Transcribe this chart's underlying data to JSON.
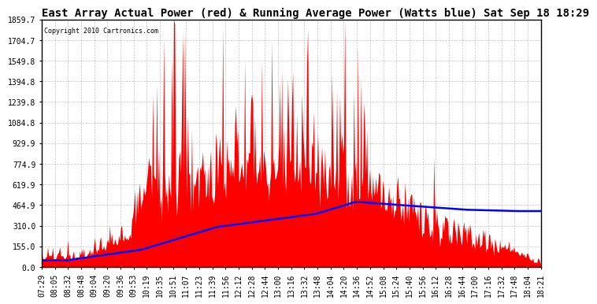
{
  "title": "East Array Actual Power (red) & Running Average Power (Watts blue) Sat Sep 18 18:29",
  "copyright": "Copyright 2010 Cartronics.com",
  "yticks": [
    0.0,
    155.0,
    310.0,
    464.9,
    619.9,
    774.9,
    929.9,
    1084.8,
    1239.8,
    1394.8,
    1549.8,
    1704.7,
    1859.7
  ],
  "xtick_labels": [
    "07:29",
    "08:05",
    "08:32",
    "08:48",
    "09:04",
    "09:20",
    "09:36",
    "09:53",
    "10:19",
    "10:35",
    "10:51",
    "11:07",
    "11:23",
    "11:39",
    "11:56",
    "12:12",
    "12:28",
    "12:44",
    "13:00",
    "13:16",
    "13:32",
    "13:48",
    "14:04",
    "14:20",
    "14:36",
    "14:52",
    "15:08",
    "15:24",
    "15:40",
    "15:56",
    "16:12",
    "16:28",
    "16:44",
    "17:00",
    "17:16",
    "17:32",
    "17:48",
    "18:04",
    "18:21"
  ],
  "bg_color": "#ffffff",
  "plot_bg_color": "#ffffff",
  "grid_color": "#aaaaaa",
  "red_color": "#ff0000",
  "blue_color": "#0000ff",
  "title_fontsize": 10,
  "tick_fontsize": 7,
  "ymax": 1859.7,
  "ymin": 0.0
}
